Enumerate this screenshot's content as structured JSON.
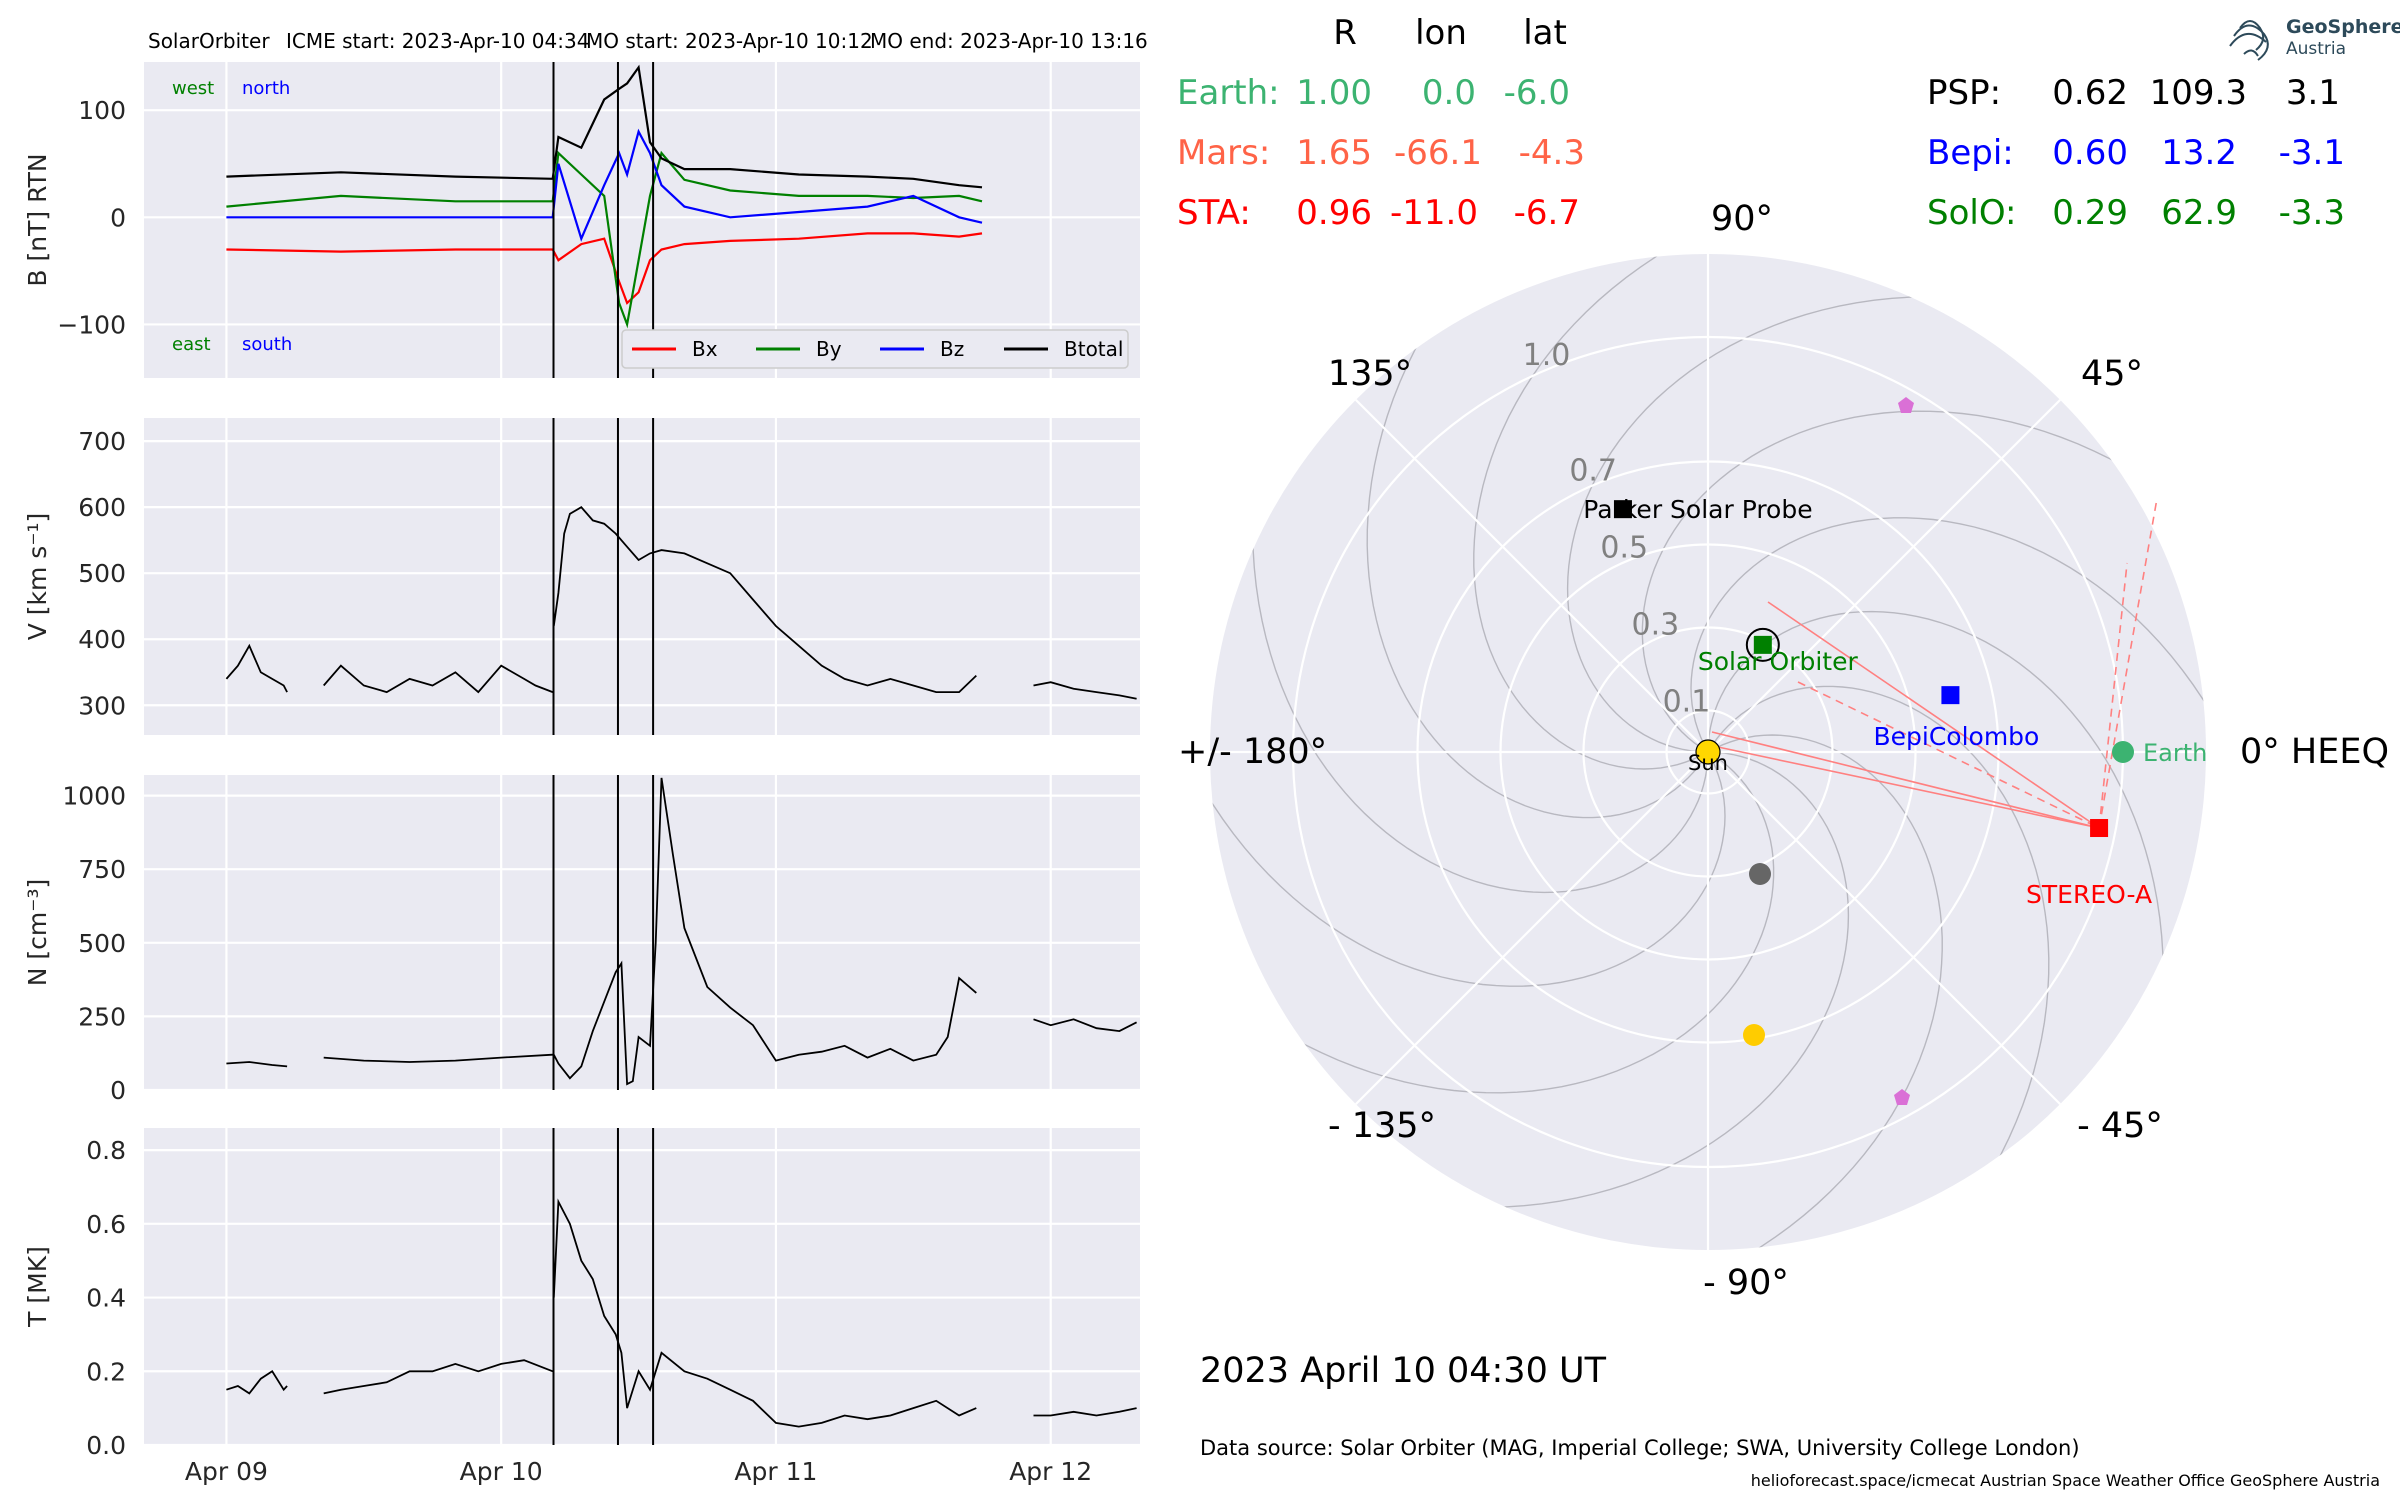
{
  "header": {
    "source": "SolarOrbiter",
    "icme_start": "ICME start: 2023-Apr-10 04:34",
    "mo_start": "MO start: 2023-Apr-10 10:12",
    "mo_end": "MO end: 2023-Apr-10 13:16"
  },
  "event_lines_hours": [
    28.57,
    34.2,
    37.27
  ],
  "annotations": {
    "west": "west",
    "north": "north",
    "east": "east",
    "south": "south"
  },
  "colors": {
    "bx": "#ff0000",
    "by": "#008000",
    "bz": "#0000ff",
    "btotal": "#000000",
    "earth": "#3cb371",
    "mars": "#ff6347",
    "sta": "#ff0000",
    "psp": "#000000",
    "bepi": "#0000ff",
    "solo": "#008000",
    "sun": "#ffd700",
    "venus": "#666666",
    "jupiter": "#ffcc00",
    "comet": "#da70d6"
  },
  "chart_data": [
    {
      "type": "line",
      "ylabel": "B [nT] RTN",
      "ylim": [
        -150,
        145
      ],
      "yticks": [
        -100,
        0,
        100
      ],
      "ytick_labels": [
        "−100",
        "0",
        "100"
      ],
      "legend": {
        "placement": "lower-right",
        "items": [
          "Bx",
          "By",
          "Bz",
          "Btotal"
        ]
      },
      "series": [
        {
          "name": "Bx",
          "x_hours": [
            0,
            10,
            20,
            28.5,
            29,
            31,
            33,
            34.3,
            35,
            36,
            37,
            38,
            40,
            44,
            50,
            56,
            60,
            64,
            66
          ],
          "values": [
            -30,
            -32,
            -30,
            -30,
            -40,
            -25,
            -20,
            -60,
            -80,
            -70,
            -40,
            -30,
            -25,
            -22,
            -20,
            -15,
            -15,
            -18,
            -15
          ]
        },
        {
          "name": "By",
          "x_hours": [
            0,
            10,
            20,
            28.5,
            29,
            31,
            33,
            34.3,
            35,
            36,
            37,
            38,
            40,
            44,
            50,
            56,
            60,
            64,
            66
          ],
          "values": [
            10,
            20,
            15,
            15,
            60,
            40,
            20,
            -80,
            -100,
            -40,
            20,
            60,
            35,
            25,
            20,
            20,
            18,
            20,
            15
          ]
        },
        {
          "name": "Bz",
          "x_hours": [
            0,
            10,
            20,
            28.5,
            29,
            31,
            33,
            34.3,
            35,
            36,
            37,
            38,
            40,
            44,
            50,
            56,
            60,
            64,
            66
          ],
          "values": [
            0,
            0,
            0,
            0,
            50,
            -20,
            30,
            60,
            40,
            80,
            60,
            30,
            10,
            0,
            5,
            10,
            20,
            0,
            -5
          ]
        },
        {
          "name": "Btotal",
          "x_hours": [
            0,
            10,
            20,
            28.5,
            29,
            31,
            33,
            34.3,
            35,
            36,
            37,
            38,
            40,
            44,
            50,
            56,
            60,
            64,
            66
          ],
          "values": [
            38,
            42,
            38,
            36,
            75,
            65,
            110,
            120,
            125,
            140,
            70,
            55,
            45,
            45,
            40,
            38,
            36,
            30,
            28
          ]
        }
      ]
    },
    {
      "type": "line",
      "ylabel": "V [km s⁻¹]",
      "ylim": [
        255,
        735
      ],
      "yticks": [
        300,
        400,
        500,
        600,
        700
      ],
      "series": [
        {
          "segments": [
            {
              "x_hours": [
                0,
                1,
                2,
                3,
                4,
                5,
                5.3
              ],
              "values": [
                340,
                360,
                390,
                350,
                340,
                330,
                320
              ]
            },
            {
              "x_hours": [
                8.5,
                10,
                12,
                14,
                16,
                18,
                20,
                22,
                24,
                26,
                27,
                28.5
              ],
              "values": [
                330,
                360,
                330,
                320,
                340,
                330,
                350,
                320,
                360,
                340,
                330,
                320
              ]
            },
            {
              "x_hours": [
                28.6,
                29,
                29.5,
                30,
                31,
                32,
                33,
                34,
                35,
                36,
                37,
                38,
                40,
                42,
                44,
                46,
                48,
                50,
                52,
                54,
                56,
                58,
                60,
                62,
                64,
                65.5
              ],
              "values": [
                420,
                470,
                560,
                590,
                600,
                580,
                575,
                560,
                540,
                520,
                530,
                535,
                530,
                515,
                500,
                460,
                420,
                390,
                360,
                340,
                330,
                340,
                330,
                320,
                320,
                345
              ]
            },
            {
              "x_hours": [
                70.5,
                72,
                74,
                76,
                78,
                79.5
              ],
              "values": [
                330,
                335,
                325,
                320,
                315,
                310
              ]
            }
          ]
        }
      ]
    },
    {
      "type": "line",
      "ylabel": "N [cm⁻³]",
      "ylim": [
        0,
        1070
      ],
      "yticks": [
        0,
        250,
        500,
        750,
        1000
      ],
      "series": [
        {
          "segments": [
            {
              "x_hours": [
                0,
                2,
                4,
                5.3
              ],
              "values": [
                90,
                95,
                85,
                80
              ]
            },
            {
              "x_hours": [
                8.5,
                12,
                16,
                20,
                24,
                28.5
              ],
              "values": [
                110,
                100,
                95,
                100,
                110,
                120
              ]
            },
            {
              "x_hours": [
                28.6,
                29,
                30,
                31,
                32,
                33,
                34,
                34.5,
                35,
                35.5,
                36,
                37,
                37.5,
                38,
                39,
                40,
                42,
                44,
                46,
                48,
                50,
                52,
                54,
                56,
                58,
                60,
                62,
                63,
                64,
                65.5
              ],
              "values": [
                120,
                90,
                40,
                80,
                200,
                300,
                400,
                430,
                20,
                30,
                180,
                150,
                500,
                1060,
                800,
                550,
                350,
                280,
                220,
                100,
                120,
                130,
                150,
                110,
                140,
                100,
                120,
                180,
                380,
                330
              ]
            },
            {
              "x_hours": [
                70.5,
                72,
                74,
                76,
                78,
                79.5
              ],
              "values": [
                240,
                220,
                240,
                210,
                200,
                230
              ]
            }
          ]
        }
      ]
    },
    {
      "type": "line",
      "ylabel": "T [MK]",
      "ylim": [
        0,
        0.86
      ],
      "yticks": [
        0.0,
        0.2,
        0.4,
        0.6,
        0.8
      ],
      "ytick_labels": [
        "0.0",
        "0.2",
        "0.4",
        "0.6",
        "0.8"
      ],
      "xlim_hours": [
        -7.2,
        79.8
      ],
      "xticks_hours": [
        0,
        24,
        48,
        72
      ],
      "xtick_labels": [
        "Apr 09",
        "Apr 10",
        "Apr 11",
        "Apr 12"
      ],
      "series": [
        {
          "segments": [
            {
              "x_hours": [
                0,
                1,
                2,
                3,
                4,
                5,
                5.3
              ],
              "values": [
                0.15,
                0.16,
                0.14,
                0.18,
                0.2,
                0.15,
                0.16
              ]
            },
            {
              "x_hours": [
                8.5,
                10,
                12,
                14,
                16,
                18,
                20,
                22,
                24,
                26,
                28.5
              ],
              "values": [
                0.14,
                0.15,
                0.16,
                0.17,
                0.2,
                0.2,
                0.22,
                0.2,
                0.22,
                0.23,
                0.2
              ]
            },
            {
              "x_hours": [
                28.6,
                29,
                30,
                31,
                32,
                33,
                34,
                34.5,
                35,
                36,
                37,
                38,
                40,
                42,
                44,
                46,
                48,
                50,
                52,
                54,
                56,
                58,
                60,
                62,
                64,
                65.5
              ],
              "values": [
                0.4,
                0.66,
                0.6,
                0.5,
                0.45,
                0.35,
                0.3,
                0.25,
                0.1,
                0.2,
                0.15,
                0.25,
                0.2,
                0.18,
                0.15,
                0.12,
                0.06,
                0.05,
                0.06,
                0.08,
                0.07,
                0.08,
                0.1,
                0.12,
                0.08,
                0.1
              ]
            },
            {
              "x_hours": [
                70.5,
                72,
                74,
                76,
                78,
                79.5
              ],
              "values": [
                0.08,
                0.08,
                0.09,
                0.08,
                0.09,
                0.1
              ]
            }
          ]
        }
      ]
    },
    {
      "type": "scatter",
      "polar": true,
      "angle_labels": [
        {
          "deg": 90,
          "text": "90°"
        },
        {
          "deg": 45,
          "text": "45°"
        },
        {
          "deg": 135,
          "text": "135°"
        },
        {
          "deg": 180,
          "text": "+/- 180°"
        },
        {
          "deg": 0,
          "text": "0° HEEQ"
        },
        {
          "deg": -45,
          "text": "- 45°"
        },
        {
          "deg": -135,
          "text": "- 135°"
        },
        {
          "deg": -90,
          "text": "- 90°"
        }
      ],
      "radial_ticks": [
        0.1,
        0.3,
        0.5,
        0.7,
        1.0
      ],
      "radial_labels": [
        "0.1",
        "0.3",
        "0.5",
        "0.7",
        "1.0"
      ],
      "rmax": 1.2,
      "table_header": [
        "R",
        "lon",
        "lat"
      ],
      "rows": [
        {
          "name": "Earth:",
          "r": "1.00",
          "lon": "0.0",
          "lat": "-6.0"
        },
        {
          "name": "Mars:",
          "r": "1.65",
          "lon": "-66.1",
          "lat": "-4.3"
        },
        {
          "name": "STA:",
          "r": "0.96",
          "lon": "-11.0",
          "lat": "-6.7"
        },
        {
          "name": "PSP:",
          "r": "0.62",
          "lon": "109.3",
          "lat": "3.1"
        },
        {
          "name": "Bepi:",
          "r": "0.60",
          "lon": "13.2",
          "lat": "-3.1"
        },
        {
          "name": "SolO:",
          "r": "0.29",
          "lon": "62.9",
          "lat": "-3.3"
        }
      ],
      "bodies": [
        {
          "label": "Earth",
          "r": 1.0,
          "lon": 0.0
        },
        {
          "label": "STEREO-A",
          "r": 0.96,
          "lon": -11.0
        },
        {
          "label": "Parker Solar Probe",
          "r": 0.62,
          "lon": 109.3
        },
        {
          "label": "BepiColombo",
          "r": 0.6,
          "lon": 13.2
        },
        {
          "label": "Solar Orbiter",
          "r": 0.29,
          "lon": 62.9
        },
        {
          "label": "Sun",
          "r": 0.0,
          "lon": 0.0
        }
      ],
      "date": "2023 April 10  04:30 UT"
    }
  ],
  "footer": {
    "data_source": "Data source: Solar Orbiter (MAG, Imperial College; SWA, University College London)",
    "credits": "helioforecast.space/icmecat   Austrian Space Weather Office   GeoSphere Austria",
    "logo_text_1": "GeoSphere",
    "logo_text_2": "Austria"
  }
}
